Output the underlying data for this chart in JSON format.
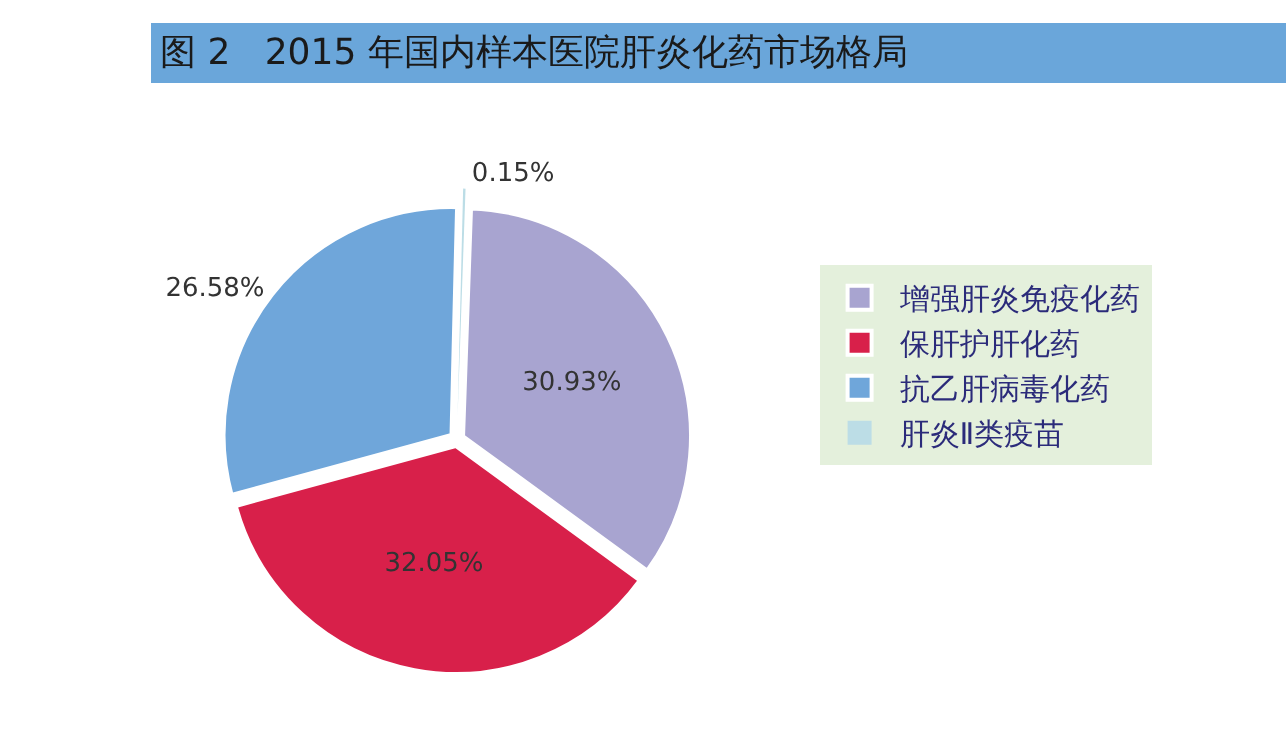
{
  "chart_data": {
    "type": "pie",
    "title": "图 2   2015 年国内样本医院肝炎化药市场格局",
    "categories": [
      "增强肝炎免疫化药",
      "保肝护肝化药",
      "抗乙肝病毒化药",
      "肝炎Ⅱ类疫苗"
    ],
    "values": [
      30.93,
      32.05,
      26.58,
      0.15
    ],
    "value_labels": [
      "30.93%",
      "32.05%",
      "26.58%",
      "0.15%"
    ],
    "colors": [
      "#a8a4d0",
      "#d8204a",
      "#6fa6da",
      "#bcdde6"
    ],
    "legend": "right"
  }
}
